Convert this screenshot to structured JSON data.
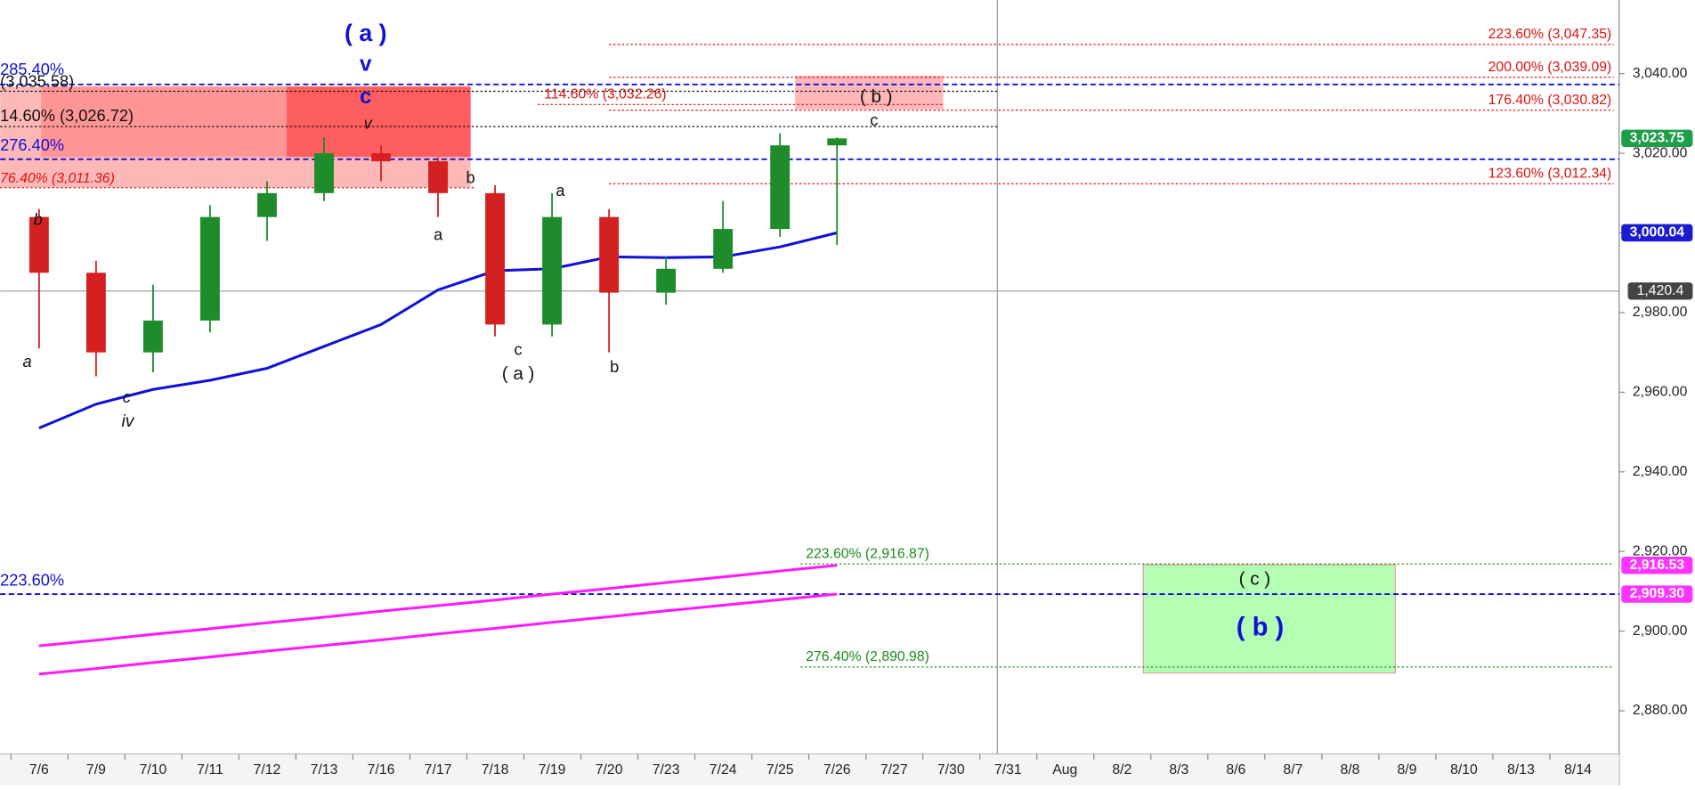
{
  "chart_data": {
    "type": "candlestick",
    "categories": [
      "7/6",
      "7/9",
      "7/10",
      "7/11",
      "7/12",
      "7/13",
      "7/16",
      "7/17",
      "7/18",
      "7/19",
      "7/20",
      "7/23",
      "7/24",
      "7/25",
      "7/26",
      "7/27",
      "7/30",
      "7/31",
      "Aug",
      "8/2",
      "8/3",
      "8/6",
      "8/7",
      "8/8",
      "8/9",
      "8/10",
      "8/13",
      "8/14"
    ],
    "open": [
      3004,
      2990,
      2970,
      2978,
      3004,
      3010,
      3020,
      3018,
      3010,
      2977,
      3004,
      2985,
      2991,
      3001,
      3022,
      null,
      null,
      null,
      null,
      null,
      null,
      null,
      null,
      null,
      null,
      null,
      null,
      null
    ],
    "high": [
      3006,
      2993,
      2987,
      3007,
      3013,
      3024,
      3022,
      3019,
      3012,
      3010,
      3006,
      2994,
      3008,
      3025,
      3024,
      null,
      null,
      null,
      null,
      null,
      null,
      null,
      null,
      null,
      null,
      null,
      null,
      null
    ],
    "low": [
      2971,
      2964,
      2965,
      2975,
      2998,
      3008,
      3013,
      3004,
      2974,
      2974,
      2970,
      2982,
      2990,
      2999,
      2997,
      null,
      null,
      null,
      null,
      null,
      null,
      null,
      null,
      null,
      null,
      null,
      null,
      null
    ],
    "close": [
      2990,
      2970,
      2978,
      3004,
      3010,
      3020,
      3018,
      3010,
      2977,
      3004,
      2985,
      2991,
      3001,
      3022,
      3023.75,
      null,
      null,
      null,
      null,
      null,
      null,
      null,
      null,
      null,
      null,
      null,
      null,
      null
    ],
    "up_color": "#1e8c2a",
    "down_color": "#d42020",
    "series": [
      {
        "color": "#1010d8",
        "values": [
          2951,
          2957,
          2960.7,
          2963,
          2966,
          2971.5,
          2977,
          2985.7,
          2990.5,
          2991,
          2994,
          2993.8,
          2994,
          2996.5,
          3000.04,
          null,
          null,
          null,
          null,
          null,
          null,
          null,
          null,
          null,
          null,
          null,
          null,
          null
        ]
      },
      {
        "color": "#ff1aff",
        "values": [
          2896.3,
          2897.7,
          2899.2,
          2900.6,
          2902.1,
          2903.5,
          2905,
          2906.4,
          2907.8,
          2909.3,
          2910.7,
          2912.2,
          2913.6,
          2915.1,
          2916.53,
          null,
          null,
          null,
          null,
          null,
          null,
          null,
          null,
          null,
          null,
          null,
          null,
          null
        ]
      },
      {
        "color": "#ff1aff",
        "values": [
          2889.2,
          2890.6,
          2892.1,
          2893.5,
          2895,
          2896.4,
          2897.8,
          2899.3,
          2900.7,
          2902.2,
          2903.6,
          2905.1,
          2906.5,
          2907.9,
          2909.3,
          null,
          null,
          null,
          null,
          null,
          null,
          null,
          null,
          null,
          null,
          null,
          null,
          null
        ]
      }
    ],
    "ylim": [
      2869.1,
      3058.5
    ],
    "yticks": [
      {
        "value": 2880,
        "label": "2,880.00"
      },
      {
        "value": 2900,
        "label": "2,900.00"
      },
      {
        "value": 2920,
        "label": "2,920.00"
      },
      {
        "value": 2940,
        "label": "2,940.00"
      },
      {
        "value": 2960,
        "label": "2,960.00"
      },
      {
        "value": 2980,
        "label": "2,980.00"
      },
      {
        "value": 3000,
        "label": "3,000.00"
      },
      {
        "value": 3020,
        "label": "3,020.00"
      },
      {
        "value": 3040,
        "label": "3,040.00"
      }
    ],
    "levels": [
      {
        "value": 3047.35,
        "label": "223.60% (3,047.35)",
        "color": "#e01010"
      },
      {
        "value": 3039.09,
        "label": "200.00% (3,039.09)",
        "color": "#e01010"
      },
      {
        "value": 3030.82,
        "label": "176.40% (3,030.82)",
        "color": "#e01010"
      },
      {
        "value": 3012.34,
        "label": "123.60% (3,012.34)",
        "color": "#e01010"
      },
      {
        "value": 3032.26,
        "label": "114.60% (3,032.26)",
        "color": "#e01010"
      },
      {
        "value": 2916.87,
        "label": "223.60% (2,916.87)",
        "color": "#1a8a1a"
      },
      {
        "value": 2890.98,
        "label": "276.40% (2,890.98)",
        "color": "#1a8a1a"
      },
      {
        "value": 3037.3,
        "label": "285.40%",
        "color": "#1010d8"
      },
      {
        "value": 3018.5,
        "label": "276.40%",
        "color": "#1010d8"
      },
      {
        "value": 2909.3,
        "label": "223.60%",
        "color": "#1010d8"
      },
      {
        "value": 3035.58,
        "label": "(3,035.58)",
        "color": "#111111"
      },
      {
        "value": 3026.72,
        "label": "14.60% (3,026.72)",
        "color": "#111111"
      },
      {
        "value": 3011.36,
        "label": "76.40% (3,011.36)",
        "color": "#e01010"
      }
    ],
    "price_tags": [
      {
        "value": 3023.75,
        "label": "3,023.75",
        "color": "#1f9e4a"
      },
      {
        "value": 3000.04,
        "label": "3,000.04",
        "color": "#1a1ad0"
      },
      {
        "value": 2916.53,
        "label": "2,916.53",
        "color": "#ff33ff"
      },
      {
        "value": 2909.3,
        "label": "2,909.30",
        "color": "#ff33ff"
      }
    ],
    "crosshair_label": "1,420.4",
    "wave_labels": [
      {
        "text": "( a )",
        "color": "#1010d8"
      },
      {
        "text": "v",
        "color": "#1010d8"
      },
      {
        "text": "c",
        "color": "#1010d8"
      },
      {
        "text": "v",
        "color": "#111111"
      },
      {
        "text": "b",
        "color": "#111111"
      },
      {
        "text": "a",
        "color": "#111111"
      },
      {
        "text": "c",
        "color": "#111111"
      },
      {
        "text": "iv",
        "color": "#111111"
      },
      {
        "text": "b",
        "color": "#111111"
      },
      {
        "text": "a",
        "color": "#111111"
      },
      {
        "text": "c",
        "color": "#111111"
      },
      {
        "text": "( a )",
        "color": "#111111"
      },
      {
        "text": "a",
        "color": "#111111"
      },
      {
        "text": "b",
        "color": "#111111"
      },
      {
        "text": "( b )",
        "color": "#111111"
      },
      {
        "text": "c",
        "color": "#111111"
      },
      {
        "text": "( c )",
        "color": "#111111"
      },
      {
        "text": "( b )",
        "color": "#1010d8"
      }
    ]
  }
}
